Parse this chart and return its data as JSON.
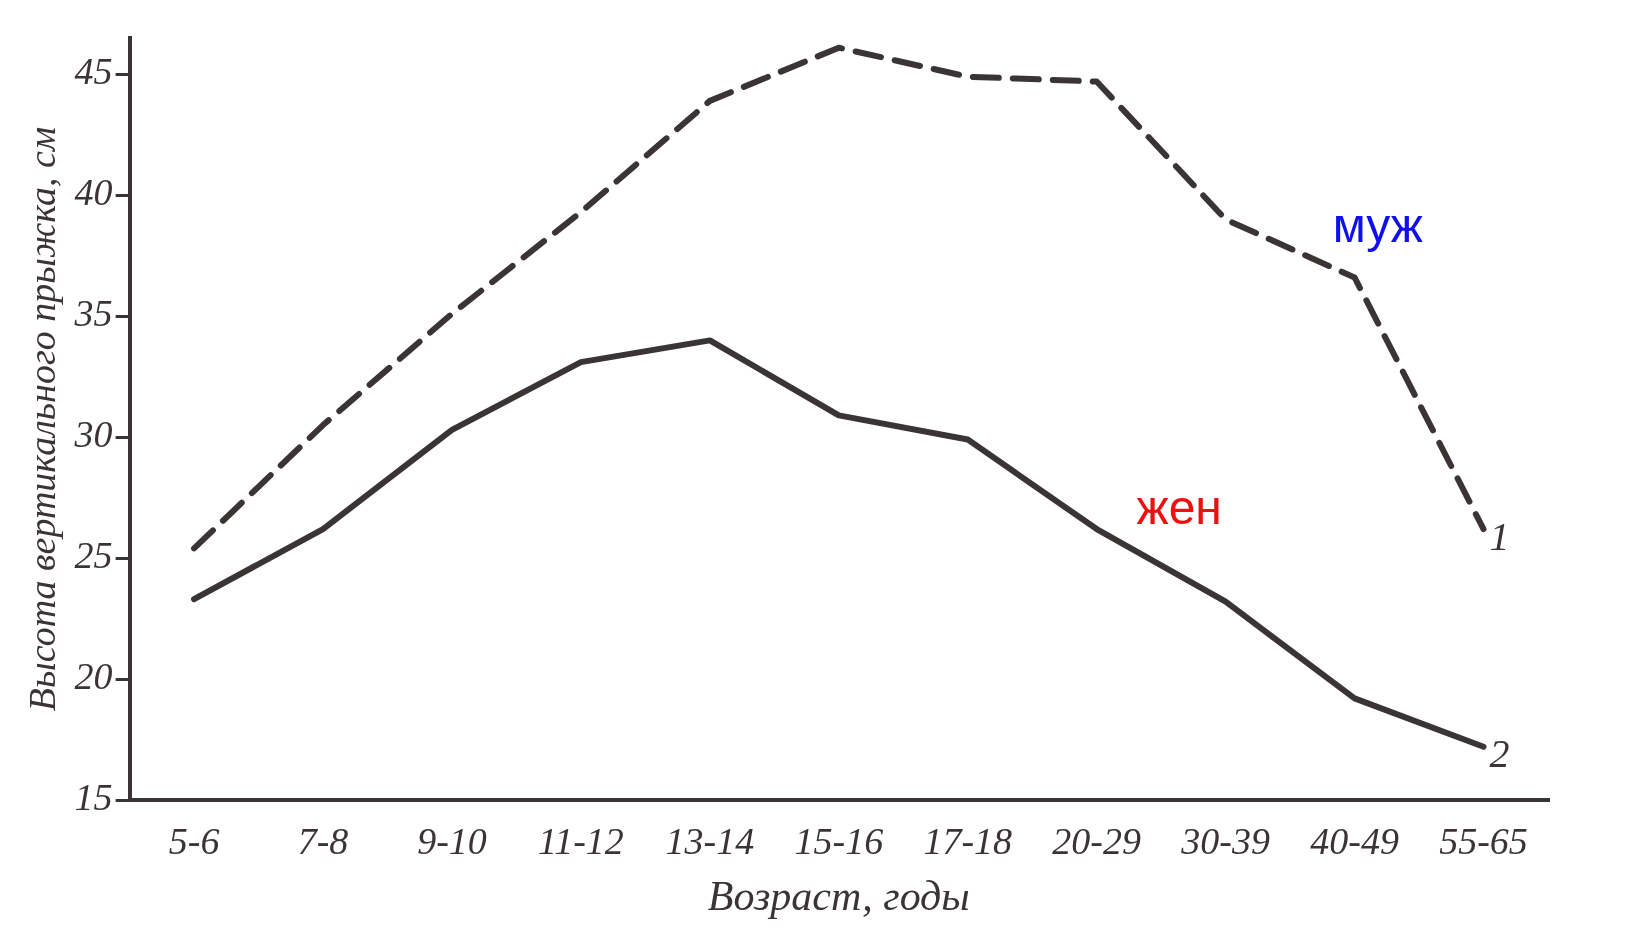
{
  "chart_data": {
    "type": "line",
    "xlabel": "Возраст, годы",
    "ylabel": "Высота вертикального прыжка, см",
    "categories": [
      "5-6",
      "7-8",
      "9-10",
      "11-12",
      "13-14",
      "15-16",
      "17-18",
      "20-29",
      "30-39",
      "40-49",
      "55-65"
    ],
    "series": [
      {
        "name": "1",
        "color": "#3a3434",
        "line_style": "dashed",
        "values": [
          25.4,
          30.5,
          35.1,
          39.3,
          43.9,
          46.1,
          44.9,
          44.7,
          39,
          36.6,
          26.2
        ]
      },
      {
        "name": "2",
        "color": "#3a3434",
        "line_style": "solid",
        "values": [
          23.3,
          26.2,
          30.3,
          33.1,
          34,
          30.9,
          29.9,
          26.2,
          23.2,
          19.2,
          17.2
        ]
      }
    ],
    "ylim": [
      15,
      46.5
    ],
    "yticks": [
      15,
      20,
      25,
      30,
      35,
      40,
      45
    ],
    "grid": false,
    "legend": false,
    "marker": "none",
    "annotations": [
      "муж",
      "жен"
    ]
  }
}
